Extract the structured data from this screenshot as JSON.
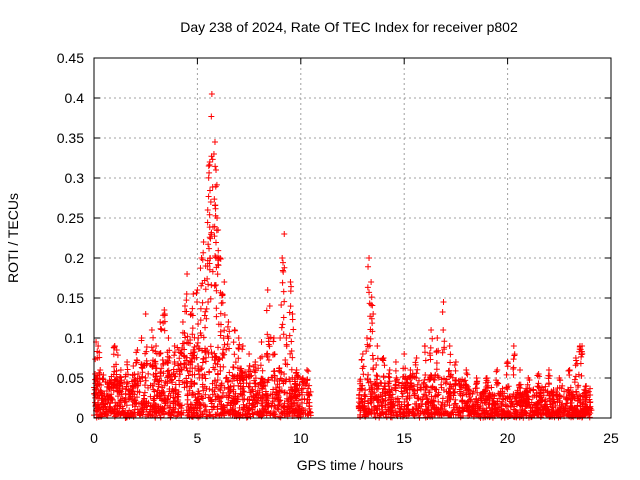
{
  "chart_data": {
    "type": "scatter",
    "title": "Day 238 of 2024, Rate Of TEC Index for receiver p802",
    "xlabel": "GPS time / hours",
    "ylabel": "ROTI / TECUs",
    "xlim": [
      0,
      25
    ],
    "ylim": [
      0,
      0.45
    ],
    "xticks": [
      "0",
      "5",
      "10",
      "15",
      "20",
      "25"
    ],
    "xtick_values": [
      0,
      5,
      10,
      15,
      20,
      25
    ],
    "yticks": [
      "0",
      "0.05",
      "0.1",
      "0.15",
      "0.2",
      "0.25",
      "0.3",
      "0.35",
      "0.4",
      "0.45"
    ],
    "ytick_values": [
      0,
      0.05,
      0.1,
      0.15,
      0.2,
      0.25,
      0.3,
      0.35,
      0.4,
      0.45
    ],
    "grid": true,
    "marker": "+",
    "marker_color": "#ff0000",
    "data_gap": [
      10.5,
      12.8
    ],
    "series": [
      {
        "points": [
          [
            0.1,
            0.095
          ],
          [
            0.2,
            0.09
          ],
          [
            0.3,
            0.06
          ],
          [
            0.5,
            0.03
          ],
          [
            0.8,
            0.045
          ],
          [
            1.0,
            0.09
          ],
          [
            1.1,
            0.085
          ],
          [
            1.3,
            0.06
          ],
          [
            1.6,
            0.07
          ],
          [
            1.9,
            0.065
          ],
          [
            2.1,
            0.085
          ],
          [
            2.3,
            0.1
          ],
          [
            2.5,
            0.13
          ],
          [
            2.8,
            0.11
          ],
          [
            3.0,
            0.09
          ],
          [
            3.2,
            0.12
          ],
          [
            3.4,
            0.135
          ],
          [
            3.6,
            0.1
          ],
          [
            3.9,
            0.09
          ],
          [
            4.1,
            0.085
          ],
          [
            4.3,
            0.12
          ],
          [
            4.4,
            0.14
          ],
          [
            4.5,
            0.18
          ],
          [
            4.7,
            0.13
          ],
          [
            4.8,
            0.155
          ],
          [
            5.0,
            0.16
          ],
          [
            5.2,
            0.2
          ],
          [
            5.3,
            0.22
          ],
          [
            5.4,
            0.19
          ],
          [
            5.5,
            0.26
          ],
          [
            5.55,
            0.315
          ],
          [
            5.6,
            0.32
          ],
          [
            5.65,
            0.27
          ],
          [
            5.7,
            0.405
          ],
          [
            5.8,
            0.33
          ],
          [
            5.85,
            0.345
          ],
          [
            5.9,
            0.31
          ],
          [
            5.95,
            0.25
          ],
          [
            6.0,
            0.235
          ],
          [
            6.1,
            0.2
          ],
          [
            6.2,
            0.155
          ],
          [
            6.3,
            0.17
          ],
          [
            6.5,
            0.12
          ],
          [
            6.8,
            0.11
          ],
          [
            7.0,
            0.1
          ],
          [
            7.2,
            0.09
          ],
          [
            7.5,
            0.08
          ],
          [
            7.8,
            0.07
          ],
          [
            8.1,
            0.095
          ],
          [
            8.4,
            0.16
          ],
          [
            8.5,
            0.14
          ],
          [
            8.7,
            0.1
          ],
          [
            9.0,
            0.1
          ],
          [
            9.1,
            0.2
          ],
          [
            9.2,
            0.23
          ],
          [
            9.3,
            0.1
          ],
          [
            9.5,
            0.17
          ],
          [
            9.6,
            0.13
          ],
          [
            9.8,
            0.06
          ],
          [
            10.1,
            0.05
          ],
          [
            10.3,
            0.06
          ],
          [
            13.0,
            0.08
          ],
          [
            13.2,
            0.1
          ],
          [
            13.3,
            0.2
          ],
          [
            13.4,
            0.17
          ],
          [
            13.5,
            0.13
          ],
          [
            13.7,
            0.09
          ],
          [
            14.0,
            0.075
          ],
          [
            14.3,
            0.06
          ],
          [
            14.6,
            0.07
          ],
          [
            15.0,
            0.08
          ],
          [
            15.3,
            0.06
          ],
          [
            15.6,
            0.075
          ],
          [
            16.0,
            0.09
          ],
          [
            16.3,
            0.11
          ],
          [
            16.6,
            0.1
          ],
          [
            16.9,
            0.145
          ],
          [
            17.2,
            0.09
          ],
          [
            17.5,
            0.07
          ],
          [
            18.0,
            0.06
          ],
          [
            18.5,
            0.05
          ],
          [
            19.0,
            0.05
          ],
          [
            19.5,
            0.06
          ],
          [
            20.0,
            0.07
          ],
          [
            20.3,
            0.09
          ],
          [
            20.6,
            0.06
          ],
          [
            21.0,
            0.05
          ],
          [
            21.5,
            0.055
          ],
          [
            22.0,
            0.06
          ],
          [
            22.5,
            0.05
          ],
          [
            23.0,
            0.06
          ],
          [
            23.3,
            0.075
          ],
          [
            23.5,
            0.09
          ],
          [
            23.6,
            0.09
          ],
          [
            23.8,
            0.04
          ],
          [
            24.0,
            0.02
          ]
        ]
      }
    ]
  }
}
